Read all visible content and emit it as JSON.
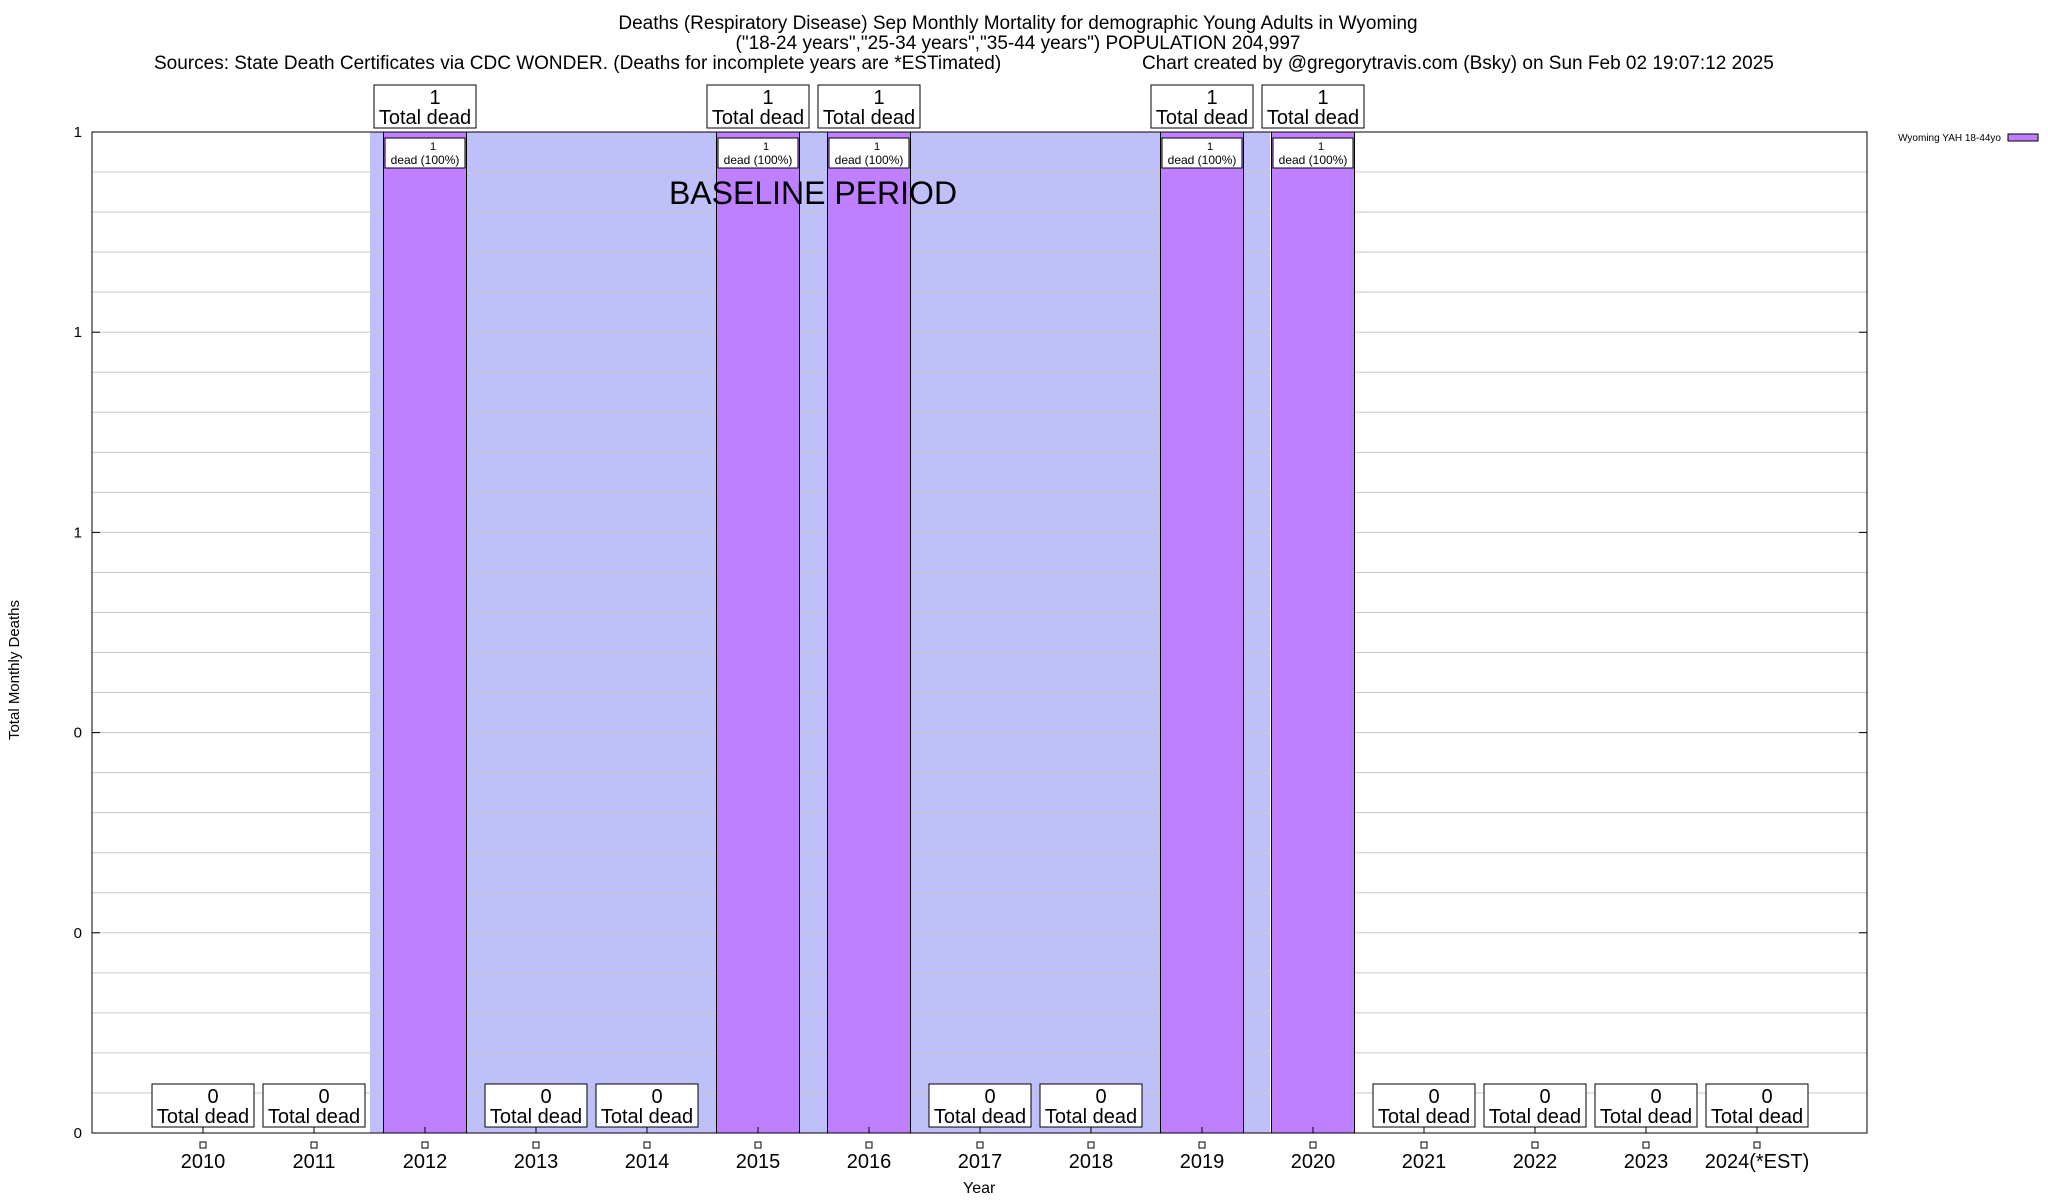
{
  "title": {
    "line1": "Deaths (Respiratory Disease) Sep Monthly Mortality for demographic Young Adults in Wyoming",
    "line2": "(\"18-24 years\",\"25-34 years\",\"35-44 years\") POPULATION 204,997",
    "line3_left": "Sources: State Death Certificates via CDC WONDER. (Deaths for incomplete years are *ESTimated)",
    "line3_right": "Chart created by @gregorytravis.com (Bsky) on Sun Feb 02 19:07:12 2025"
  },
  "colors": {
    "bar": "#bf80ff",
    "baseline": "#bfbffa",
    "grid": "#c8c8c8"
  },
  "chart_data": {
    "type": "bar",
    "categories": [
      "2010",
      "2011",
      "2012",
      "2013",
      "2014",
      "2015",
      "2016",
      "2017",
      "2018",
      "2019",
      "2020",
      "2021",
      "2022",
      "2023",
      "2024(*EST)"
    ],
    "series": [
      {
        "name": "Wyoming YAH 18-44yo",
        "values": [
          0,
          0,
          1,
          0,
          0,
          1,
          1,
          0,
          0,
          1,
          1,
          0,
          0,
          0,
          0
        ]
      }
    ],
    "top_labels": [
      {
        "value": "0",
        "text": "Total dead"
      },
      {
        "value": "0",
        "text": "Total dead"
      },
      {
        "value": "1",
        "text": "Total dead"
      },
      {
        "value": "0",
        "text": "Total dead"
      },
      {
        "value": "0",
        "text": "Total dead"
      },
      {
        "value": "1",
        "text": "Total dead"
      },
      {
        "value": "1",
        "text": "Total dead"
      },
      {
        "value": "0",
        "text": "Total dead"
      },
      {
        "value": "0",
        "text": "Total dead"
      },
      {
        "value": "1",
        "text": "Total dead"
      },
      {
        "value": "1",
        "text": "Total dead"
      },
      {
        "value": "0",
        "text": "Total dead"
      },
      {
        "value": "0",
        "text": "Total dead"
      },
      {
        "value": "0",
        "text": "Total dead"
      },
      {
        "value": "0",
        "text": "Total dead"
      }
    ],
    "inner_labels": [
      "",
      "",
      "1\ndead (100%)",
      "",
      "",
      "1\ndead (100%)",
      "1\ndead (100%)",
      "",
      "",
      "1\ndead (100%)",
      "1\ndead (100%)",
      "",
      "",
      "",
      ""
    ],
    "baseline_period": {
      "label": "BASELINE PERIOD",
      "from": "2012",
      "to": "2020"
    },
    "ylim": [
      0,
      1
    ],
    "ytick_labels": [
      "0",
      "0",
      "0",
      "1",
      "1",
      "1"
    ],
    "ylabel": "Total Monthly Deaths",
    "xlabel": "Year",
    "legend": {
      "label": "Wyoming YAH 18-44yo",
      "position": "top-right"
    },
    "grid": true
  }
}
